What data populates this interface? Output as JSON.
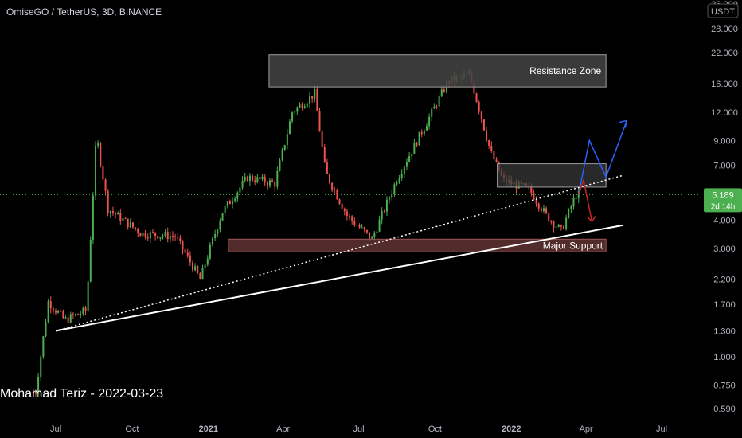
{
  "header": {
    "title": "OmiseGO / TetherUS, 3D, BINANCE"
  },
  "watermark": {
    "author_text": "Mohamad Teriz - 2022-03-23"
  },
  "price_axis": {
    "currency": "USDT",
    "ticks": [
      "36.000",
      "28.000",
      "22.000",
      "16.000",
      "12.000",
      "9.000",
      "7.000",
      "5.500",
      "4.000",
      "3.000",
      "2.200",
      "1.700",
      "1.300",
      "1.000",
      "0.750",
      "0.590"
    ]
  },
  "time_axis": {
    "ticks": [
      "Jul",
      "Oct",
      "2021",
      "Apr",
      "Jul",
      "Oct",
      "2022",
      "Apr",
      "Jul"
    ]
  },
  "current_price": {
    "value": "5.189",
    "countdown": "2d 14h"
  },
  "zones": {
    "resistance": "Resistance Zone",
    "support": "Major Support"
  },
  "colors": {
    "background": "#000000",
    "up": "#26a69a",
    "up_candle": "#4caf50",
    "down": "#ef5350",
    "trendline": "#ffffff",
    "bull_arrow": "#2962ff",
    "bear_arrow": "#c62828",
    "support_zone": "#6d3a3a",
    "resistance_zone": "#444444",
    "current_price_tag": "#4caf50"
  },
  "chart_data": {
    "type": "candlestick",
    "title": "OmiseGO / TetherUS, 3D, BINANCE",
    "scale": "log",
    "ylim": [
      0.55,
      36
    ],
    "x_range": [
      "2020-06-01",
      "2022-08-15"
    ],
    "approx_closes": [
      {
        "date": "2020-06-10",
        "price": 0.7
      },
      {
        "date": "2020-06-25",
        "price": 1.75
      },
      {
        "date": "2020-07-15",
        "price": 1.45
      },
      {
        "date": "2020-08-10",
        "price": 1.6
      },
      {
        "date": "2020-08-22",
        "price": 9.5
      },
      {
        "date": "2020-09-05",
        "price": 4.5
      },
      {
        "date": "2020-10-15",
        "price": 3.5
      },
      {
        "date": "2020-11-25",
        "price": 3.4
      },
      {
        "date": "2020-12-25",
        "price": 2.2
      },
      {
        "date": "2021-01-20",
        "price": 4.3
      },
      {
        "date": "2021-02-20",
        "price": 6.2
      },
      {
        "date": "2021-03-25",
        "price": 5.8
      },
      {
        "date": "2021-04-15",
        "price": 12.0
      },
      {
        "date": "2021-05-12",
        "price": 14.5
      },
      {
        "date": "2021-05-25",
        "price": 6.5
      },
      {
        "date": "2021-06-20",
        "price": 4.2
      },
      {
        "date": "2021-07-20",
        "price": 3.3
      },
      {
        "date": "2021-08-20",
        "price": 6.2
      },
      {
        "date": "2021-09-25",
        "price": 11.0
      },
      {
        "date": "2021-10-20",
        "price": 16.5
      },
      {
        "date": "2021-11-15",
        "price": 17.5
      },
      {
        "date": "2021-12-10",
        "price": 8.0
      },
      {
        "date": "2021-12-25",
        "price": 6.0
      },
      {
        "date": "2022-01-25",
        "price": 5.5
      },
      {
        "date": "2022-02-15",
        "price": 4.2
      },
      {
        "date": "2022-03-05",
        "price": 3.6
      },
      {
        "date": "2022-03-23",
        "price": 5.189
      }
    ],
    "resistance_zone": {
      "low": 15.5,
      "high": 21.5
    },
    "support_zone": {
      "low": 2.9,
      "high": 3.3
    },
    "mid_zone": {
      "low": 5.6,
      "high": 7.1
    },
    "trendline_solid": [
      {
        "date": "2020-07-01",
        "price": 1.3
      },
      {
        "date": "2022-05-15",
        "price": 3.8
      }
    ],
    "trendline_dotted": [
      {
        "date": "2020-07-01",
        "price": 1.3
      },
      {
        "date": "2022-05-15",
        "price": 6.3
      }
    ]
  }
}
